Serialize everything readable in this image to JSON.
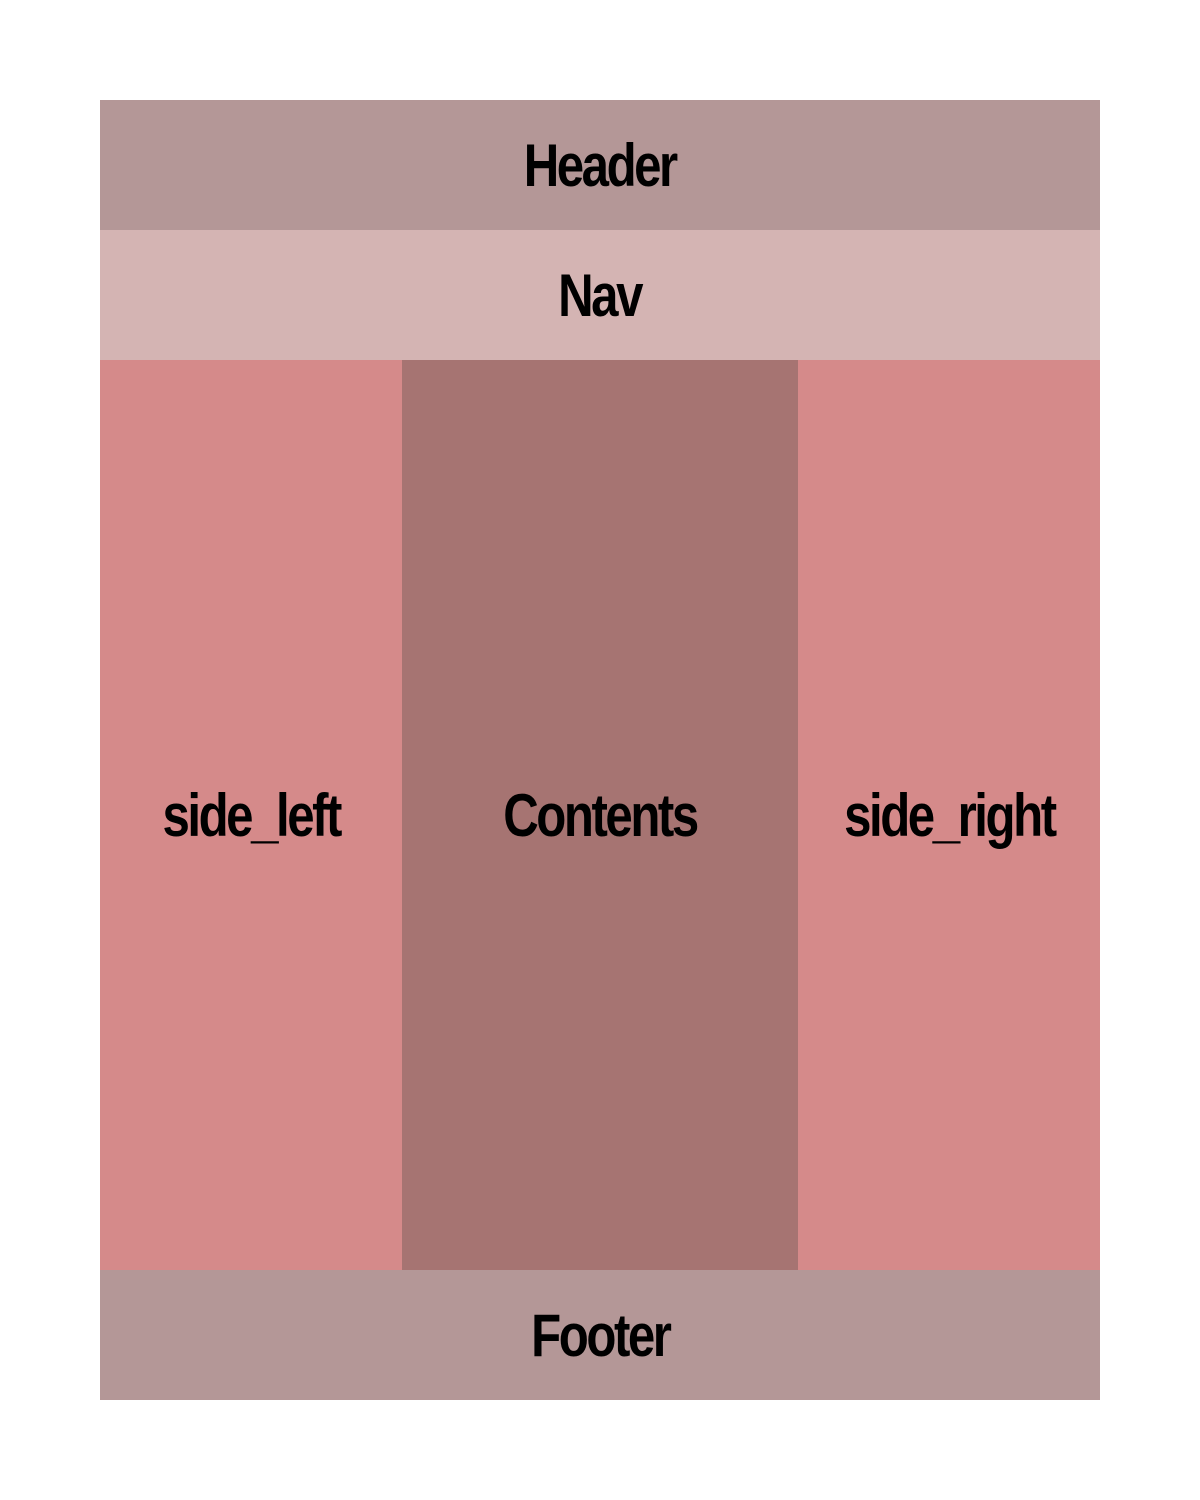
{
  "header": {
    "label": "Header",
    "color": "#b49797"
  },
  "nav": {
    "label": "Nav",
    "color": "#d4b4b3"
  },
  "side_left": {
    "label": "side_left",
    "color": "#d58a8a"
  },
  "contents": {
    "label": "Contents",
    "color": "#a67472"
  },
  "side_right": {
    "label": "side_right",
    "color": "#d58a8a"
  },
  "footer": {
    "label": "Footer",
    "color": "#b49797"
  }
}
